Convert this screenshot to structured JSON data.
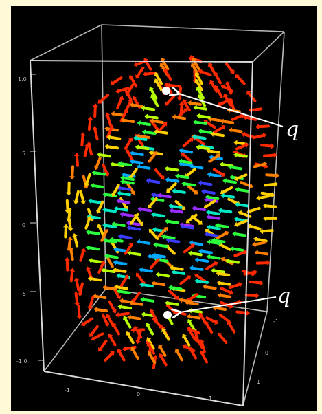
{
  "figure": {
    "background": "#000000",
    "frame_color": "#fefad8",
    "box_color": "#d9d9d9",
    "vertical_axis_ticks": [
      "1.0",
      "5",
      "0",
      "-5",
      "-1.0"
    ],
    "bottom_axis_ticks": [
      "-1",
      "0",
      "1"
    ],
    "right_axis_ticks": [
      "-1",
      "0",
      "1"
    ],
    "point_labels": [
      "q",
      "q"
    ],
    "point_color": "#ffffff",
    "palette": [
      "#ff2a00",
      "#ff7f00",
      "#ffd000",
      "#b6ff00",
      "#2cff3c",
      "#00e7c4",
      "#00a8ff",
      "#3c3cff",
      "#9a2cff"
    ]
  }
}
